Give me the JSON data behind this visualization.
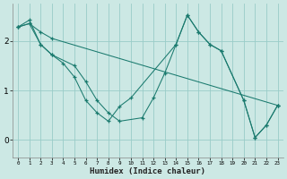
{
  "xlabel": "Humidex (Indice chaleur)",
  "background_color": "#cce8e4",
  "grid_color": "#99ccc8",
  "line_color": "#1a7a6e",
  "xlim": [
    -0.5,
    23.5
  ],
  "ylim": [
    -0.35,
    2.75
  ],
  "yticks": [
    0,
    1,
    2
  ],
  "xticks": [
    0,
    1,
    2,
    3,
    4,
    5,
    6,
    7,
    8,
    9,
    10,
    11,
    12,
    13,
    14,
    15,
    16,
    17,
    18,
    19,
    20,
    21,
    22,
    23
  ],
  "line1_x": [
    0,
    1,
    2,
    3,
    4,
    5,
    6,
    7,
    8,
    9,
    10,
    14,
    15,
    16,
    17,
    18,
    20,
    21,
    22,
    23
  ],
  "line1_y": [
    2.28,
    2.42,
    1.93,
    1.72,
    1.55,
    1.27,
    0.8,
    0.55,
    0.38,
    0.68,
    0.85,
    1.93,
    2.52,
    2.18,
    1.93,
    1.8,
    0.8,
    0.05,
    0.3,
    0.7
  ],
  "line2_x": [
    0,
    1,
    2,
    3,
    5,
    6,
    7,
    8,
    9,
    11,
    12,
    13,
    14,
    15,
    16,
    17,
    18,
    20,
    21,
    22,
    23
  ],
  "line2_y": [
    2.28,
    2.35,
    1.93,
    1.72,
    1.5,
    1.18,
    0.8,
    0.55,
    0.38,
    0.45,
    0.85,
    1.35,
    1.93,
    2.52,
    2.18,
    1.93,
    1.8,
    0.8,
    0.05,
    0.3,
    0.7
  ],
  "line3_x": [
    0,
    1,
    2,
    3,
    23
  ],
  "line3_y": [
    2.28,
    2.35,
    2.18,
    2.05,
    0.7
  ]
}
